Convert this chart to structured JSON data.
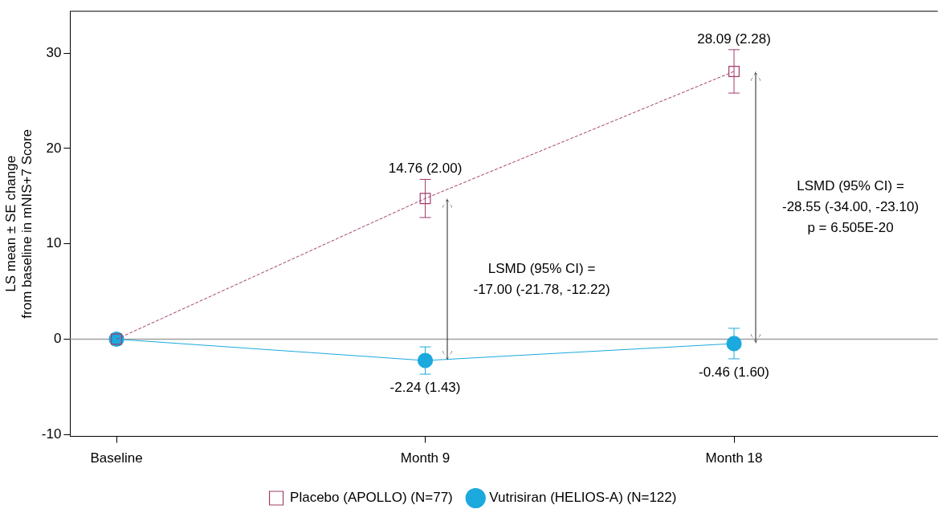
{
  "chart_data": {
    "type": "line",
    "ylabel": "LS mean ± SE change\nfrom baseline in mNIS+7 Score",
    "categories": [
      "Baseline",
      "Month 9",
      "Month 18"
    ],
    "series": [
      {
        "name": "Placebo (APOLLO) (N=77)",
        "color": "#a23c6b",
        "marker": "square",
        "line_style": "dashed",
        "values": [
          0,
          14.76,
          28.09
        ],
        "errors": [
          null,
          2.0,
          2.28
        ],
        "value_labels": [
          null,
          "14.76 (2.00)",
          "28.09 (2.28)"
        ]
      },
      {
        "name": "Vutrisiran (HELIOS-A) (N=122)",
        "color": "#1ba9de",
        "marker": "circle",
        "line_style": "solid",
        "values": [
          0,
          -2.24,
          -0.46
        ],
        "errors": [
          null,
          1.43,
          1.6
        ],
        "value_labels": [
          null,
          "-2.24 (1.43)",
          "-0.46 (1.60)"
        ]
      }
    ],
    "ylim": [
      -10.2,
      34.4
    ],
    "yticks": [
      -10,
      0,
      10,
      20,
      30
    ],
    "ref_lines": [
      {
        "axis": "y",
        "value": 0,
        "color": "#a0a0a0"
      }
    ],
    "annotations": [
      "LSMD (95% CI) =\n-17.00 (-21.78, -12.22)",
      "LSMD (95% CI) =\n-28.55 (-34.00, -23.10)\np = 6.505E-20"
    ],
    "grid": false,
    "legend": "bottom"
  }
}
